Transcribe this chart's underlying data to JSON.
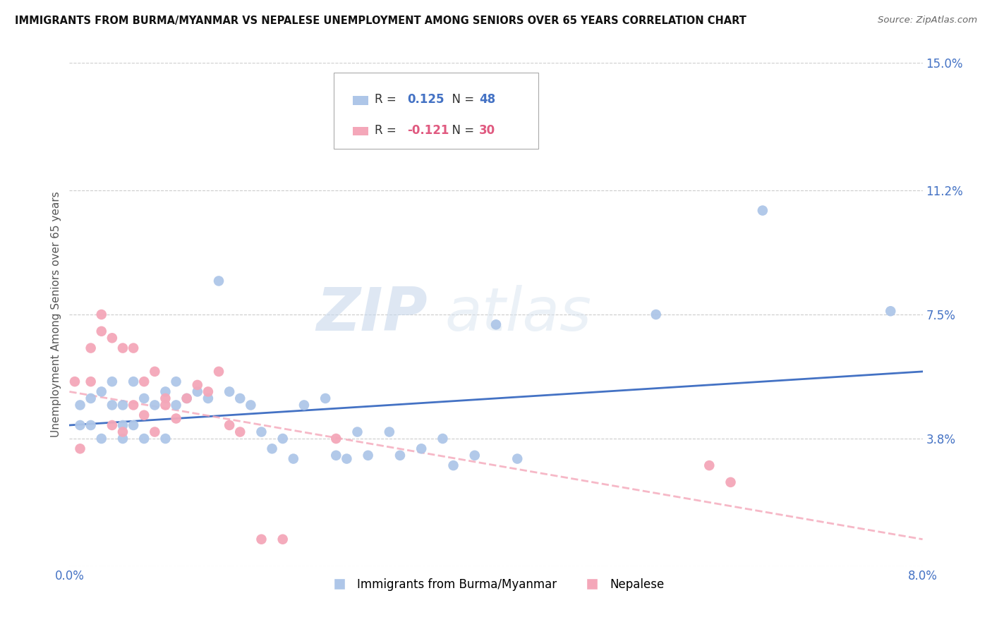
{
  "title": "IMMIGRANTS FROM BURMA/MYANMAR VS NEPALESE UNEMPLOYMENT AMONG SENIORS OVER 65 YEARS CORRELATION CHART",
  "source": "Source: ZipAtlas.com",
  "ylabel": "Unemployment Among Seniors over 65 years",
  "xlim": [
    0.0,
    0.08
  ],
  "ylim": [
    0.0,
    0.15
  ],
  "yticks_right": [
    0.0,
    0.038,
    0.075,
    0.112,
    0.15
  ],
  "ytick_labels_right": [
    "",
    "3.8%",
    "7.5%",
    "11.2%",
    "15.0%"
  ],
  "xticks": [
    0.0,
    0.02,
    0.04,
    0.06,
    0.08
  ],
  "xtick_labels": [
    "0.0%",
    "",
    "",
    "",
    "8.0%"
  ],
  "blue_r": "0.125",
  "blue_n": "48",
  "pink_r": "-0.121",
  "pink_n": "30",
  "blue_color": "#aec6e8",
  "pink_color": "#f4a7b9",
  "blue_line_color": "#4472c4",
  "pink_line_color": "#f4a7b9",
  "watermark_zip": "ZIP",
  "watermark_atlas": "atlas",
  "blue_dots_x": [
    0.001,
    0.001,
    0.002,
    0.002,
    0.003,
    0.003,
    0.004,
    0.004,
    0.005,
    0.005,
    0.005,
    0.006,
    0.006,
    0.007,
    0.007,
    0.008,
    0.009,
    0.009,
    0.01,
    0.01,
    0.011,
    0.012,
    0.013,
    0.014,
    0.015,
    0.016,
    0.017,
    0.018,
    0.019,
    0.02,
    0.021,
    0.022,
    0.024,
    0.025,
    0.026,
    0.027,
    0.028,
    0.03,
    0.031,
    0.033,
    0.035,
    0.036,
    0.038,
    0.04,
    0.042,
    0.055,
    0.065,
    0.077
  ],
  "blue_dots_y": [
    0.048,
    0.042,
    0.05,
    0.042,
    0.052,
    0.038,
    0.048,
    0.055,
    0.048,
    0.042,
    0.038,
    0.055,
    0.042,
    0.05,
    0.038,
    0.048,
    0.052,
    0.038,
    0.055,
    0.048,
    0.05,
    0.052,
    0.05,
    0.085,
    0.052,
    0.05,
    0.048,
    0.04,
    0.035,
    0.038,
    0.032,
    0.048,
    0.05,
    0.033,
    0.032,
    0.04,
    0.033,
    0.04,
    0.033,
    0.035,
    0.038,
    0.03,
    0.033,
    0.072,
    0.032,
    0.075,
    0.106,
    0.076
  ],
  "pink_dots_x": [
    0.0005,
    0.001,
    0.002,
    0.002,
    0.003,
    0.003,
    0.004,
    0.004,
    0.005,
    0.005,
    0.006,
    0.006,
    0.007,
    0.007,
    0.008,
    0.008,
    0.009,
    0.009,
    0.01,
    0.011,
    0.012,
    0.013,
    0.014,
    0.015,
    0.016,
    0.018,
    0.02,
    0.025,
    0.06,
    0.062
  ],
  "pink_dots_y": [
    0.055,
    0.035,
    0.065,
    0.055,
    0.075,
    0.07,
    0.068,
    0.042,
    0.065,
    0.04,
    0.065,
    0.048,
    0.055,
    0.045,
    0.058,
    0.04,
    0.05,
    0.048,
    0.044,
    0.05,
    0.054,
    0.052,
    0.058,
    0.042,
    0.04,
    0.008,
    0.008,
    0.038,
    0.03,
    0.025
  ],
  "blue_trend_x": [
    0.0,
    0.08
  ],
  "blue_trend_y": [
    0.042,
    0.058
  ],
  "pink_trend_x": [
    0.0,
    0.08
  ],
  "pink_trend_y": [
    0.052,
    0.008
  ]
}
